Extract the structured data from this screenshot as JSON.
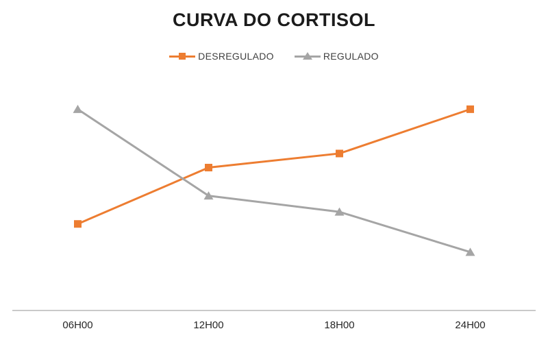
{
  "chart_data": {
    "type": "line",
    "title": "CURVA DO CORTISOL",
    "categories": [
      "06H00",
      "12H00",
      "18H00",
      "24H00"
    ],
    "series": [
      {
        "name": "DESREGULADO",
        "values": [
          4.3,
          7.1,
          7.8,
          10.0
        ],
        "color": "#ED7D31",
        "marker": "square"
      },
      {
        "name": "REGULADO",
        "values": [
          10.0,
          5.7,
          4.9,
          2.9
        ],
        "color": "#A5A5A5",
        "marker": "triangle"
      }
    ],
    "xlabel": "",
    "ylabel": "",
    "ylim": [
      0,
      11
    ],
    "y_axis_visible": false,
    "grid": false,
    "legend_position": "top",
    "axis_line_color": "#C9C9C9",
    "tick_text_color": "#262626",
    "title_color": "#1B1B1B",
    "legend_text_color": "#404040",
    "background_color": "#FFFFFF"
  }
}
